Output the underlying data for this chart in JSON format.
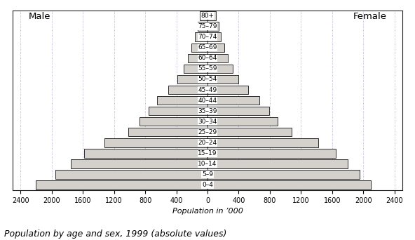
{
  "age_groups": [
    "0–4",
    "5–9",
    "10–14",
    "15–19",
    "20–24",
    "25–29",
    "30–34",
    "35–39",
    "40–44",
    "45–49",
    "50–54",
    "55–59",
    "60–64",
    "65–69",
    "70–74",
    "75–79",
    "80+"
  ],
  "male": [
    2200,
    1950,
    1750,
    1580,
    1320,
    1020,
    870,
    760,
    650,
    500,
    390,
    310,
    255,
    205,
    165,
    130,
    95
  ],
  "female": [
    2100,
    1950,
    1800,
    1650,
    1420,
    1080,
    900,
    790,
    670,
    520,
    400,
    320,
    265,
    215,
    175,
    140,
    110
  ],
  "bar_color": "#d4d0cc",
  "bar_edge_color": "#111111",
  "background_color": "#ffffff",
  "grid_color_major": "#9999bb",
  "grid_color_minor": "#ccccdd",
  "title_label": "Population by age and sex, 1999 (absolute values)",
  "xlabel": "Population in ’000",
  "male_label": "Male",
  "female_label": "Female",
  "xlim": 2500,
  "xticks": [
    0,
    400,
    800,
    1200,
    1600,
    2000,
    2400
  ],
  "title_fontsize": 9,
  "label_fontsize": 8,
  "tick_fontsize": 7,
  "age_label_fontsize": 6.5,
  "bar_height": 0.82
}
